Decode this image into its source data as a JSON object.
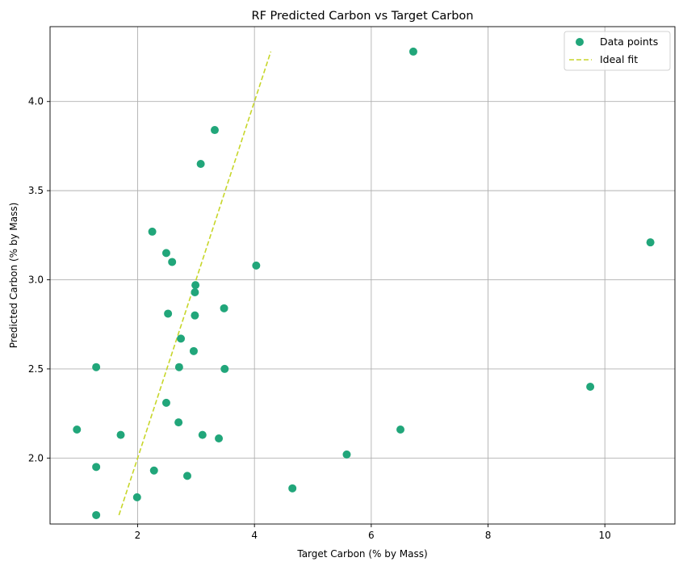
{
  "chart_data": {
    "type": "scatter",
    "title": "RF Predicted Carbon vs Target Carbon",
    "xlabel": "Target Carbon (% by Mass)",
    "ylabel": "Predicted Carbon (% by Mass)",
    "xlim": [
      0.5,
      11.2
    ],
    "ylim": [
      1.63,
      4.42
    ],
    "xticks": [
      2,
      4,
      6,
      8,
      10
    ],
    "yticks": [
      2.0,
      2.5,
      3.0,
      3.5,
      4.0
    ],
    "grid": true,
    "legend_position": "top-right",
    "colors": {
      "points": "#21a67a",
      "ideal": "#c7d62a",
      "grid": "#b0b0b0"
    },
    "series": [
      {
        "name": "Data points",
        "kind": "scatter",
        "points": [
          {
            "x": 6.72,
            "y": 4.28
          },
          {
            "x": 3.32,
            "y": 3.84
          },
          {
            "x": 3.08,
            "y": 3.65
          },
          {
            "x": 2.25,
            "y": 3.27
          },
          {
            "x": 10.78,
            "y": 3.21
          },
          {
            "x": 2.49,
            "y": 3.15
          },
          {
            "x": 2.59,
            "y": 3.1
          },
          {
            "x": 4.03,
            "y": 3.08
          },
          {
            "x": 2.99,
            "y": 2.97
          },
          {
            "x": 2.98,
            "y": 2.93
          },
          {
            "x": 3.48,
            "y": 2.84
          },
          {
            "x": 2.52,
            "y": 2.81
          },
          {
            "x": 2.98,
            "y": 2.8
          },
          {
            "x": 2.74,
            "y": 2.67
          },
          {
            "x": 2.96,
            "y": 2.6
          },
          {
            "x": 1.29,
            "y": 2.51
          },
          {
            "x": 2.71,
            "y": 2.51
          },
          {
            "x": 3.49,
            "y": 2.5
          },
          {
            "x": 9.75,
            "y": 2.4
          },
          {
            "x": 2.49,
            "y": 2.31
          },
          {
            "x": 2.7,
            "y": 2.2
          },
          {
            "x": 0.96,
            "y": 2.16
          },
          {
            "x": 6.5,
            "y": 2.16
          },
          {
            "x": 1.71,
            "y": 2.13
          },
          {
            "x": 3.11,
            "y": 2.13
          },
          {
            "x": 3.39,
            "y": 2.11
          },
          {
            "x": 5.58,
            "y": 2.02
          },
          {
            "x": 1.29,
            "y": 1.95
          },
          {
            "x": 2.28,
            "y": 1.93
          },
          {
            "x": 2.85,
            "y": 1.9
          },
          {
            "x": 4.65,
            "y": 1.83
          },
          {
            "x": 1.99,
            "y": 1.78
          },
          {
            "x": 1.29,
            "y": 1.68
          }
        ]
      },
      {
        "name": "Ideal fit",
        "kind": "line",
        "style": "dashed",
        "points": [
          {
            "x": 1.68,
            "y": 1.68
          },
          {
            "x": 4.28,
            "y": 4.28
          }
        ]
      }
    ]
  }
}
